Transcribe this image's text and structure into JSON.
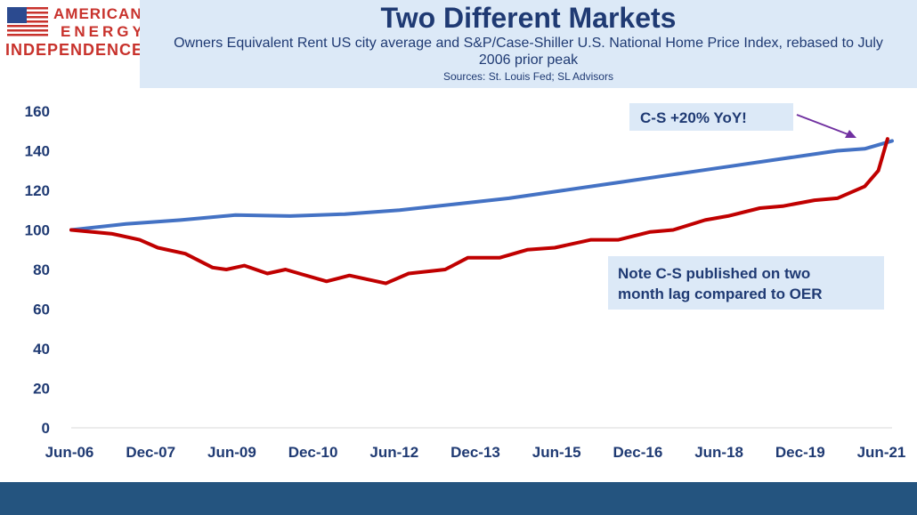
{
  "logo": {
    "line1": "AMERICAN",
    "line2": "ENERGY",
    "line3": "INDEPENDENCE",
    "flag_blue": "#2b4a8f",
    "flag_red": "#c8322c"
  },
  "header": {
    "title": "Two Different Markets",
    "subtitle": "Owners Equivalent Rent US city average and S&P/Case-Shiller U.S. National Home Price Index, rebased to July 2006 prior peak",
    "sources": "Sources: St. Louis Fed; SL Advisors"
  },
  "chart_data": {
    "type": "line",
    "title": "Two Different Markets",
    "xlabel": "",
    "ylabel": "",
    "ylim": [
      0,
      160
    ],
    "yticks": [
      0,
      20,
      40,
      60,
      80,
      100,
      120,
      140,
      160
    ],
    "xticks": [
      "Jun-06",
      "Dec-07",
      "Jun-09",
      "Dec-10",
      "Jun-12",
      "Dec-13",
      "Jun-15",
      "Dec-16",
      "Jun-18",
      "Dec-19",
      "Jun-21"
    ],
    "x_range": [
      "2006-06",
      "2021-06"
    ],
    "grid": false,
    "legend": "none",
    "series": [
      {
        "color": "#4472c4",
        "points": [
          [
            "2006-06",
            100
          ],
          [
            "2007-06",
            103
          ],
          [
            "2008-06",
            105
          ],
          [
            "2009-06",
            107.5
          ],
          [
            "2010-06",
            107
          ],
          [
            "2011-06",
            108
          ],
          [
            "2012-06",
            110
          ],
          [
            "2013-06",
            113
          ],
          [
            "2014-06",
            116
          ],
          [
            "2015-06",
            120
          ],
          [
            "2016-06",
            124
          ],
          [
            "2017-06",
            128
          ],
          [
            "2018-06",
            132
          ],
          [
            "2019-06",
            136
          ],
          [
            "2020-06",
            140
          ],
          [
            "2020-12",
            141
          ],
          [
            "2021-06",
            145
          ]
        ]
      },
      {
        "color": "#c00000",
        "points": [
          [
            "2006-06",
            100
          ],
          [
            "2007-03",
            98
          ],
          [
            "2007-09",
            95
          ],
          [
            "2008-01",
            91
          ],
          [
            "2008-07",
            88
          ],
          [
            "2009-01",
            81
          ],
          [
            "2009-04",
            80
          ],
          [
            "2009-08",
            82
          ],
          [
            "2010-01",
            78
          ],
          [
            "2010-05",
            80
          ],
          [
            "2010-08",
            78
          ],
          [
            "2011-02",
            74
          ],
          [
            "2011-07",
            77
          ],
          [
            "2012-03",
            73
          ],
          [
            "2012-08",
            78
          ],
          [
            "2013-04",
            80
          ],
          [
            "2013-09",
            86
          ],
          [
            "2014-04",
            86
          ],
          [
            "2014-10",
            90
          ],
          [
            "2015-04",
            91
          ],
          [
            "2015-12",
            95
          ],
          [
            "2016-06",
            95
          ],
          [
            "2017-01",
            99
          ],
          [
            "2017-06",
            100
          ],
          [
            "2018-01",
            105
          ],
          [
            "2018-06",
            107
          ],
          [
            "2019-01",
            111
          ],
          [
            "2019-06",
            112
          ],
          [
            "2020-01",
            115
          ],
          [
            "2020-06",
            116
          ],
          [
            "2020-12",
            122
          ],
          [
            "2021-03",
            130
          ],
          [
            "2021-05",
            146
          ]
        ]
      }
    ],
    "annotations": [
      "C-S +20% YoY!",
      "Note C-S published on two month lag compared to OER"
    ]
  },
  "callouts": {
    "yoy": "C-S +20% YoY!",
    "note_line1": "Note C-S published on two",
    "note_line2": "month lag compared to OER",
    "box_color": "#dce9f7",
    "arrow_color": "#7030a0"
  },
  "footer": {
    "color": "#24547f"
  }
}
